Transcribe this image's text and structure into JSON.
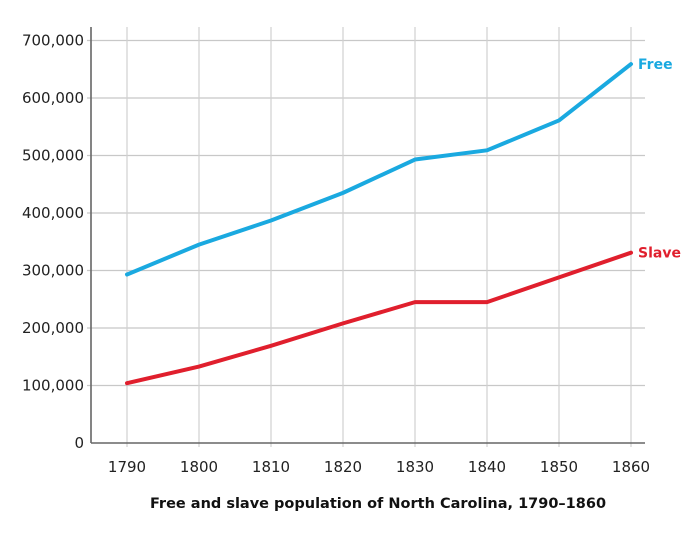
{
  "chart_data": {
    "type": "line",
    "title": "Free and slave population of North Carolina, 1790–1860",
    "xlabel": "",
    "ylabel": "",
    "x": [
      1790,
      1800,
      1810,
      1820,
      1830,
      1840,
      1850,
      1860
    ],
    "x_tick_labels": [
      "1790",
      "1800",
      "1810",
      "1820",
      "1830",
      "1840",
      "1850",
      "1860"
    ],
    "ylim": [
      0,
      700000
    ],
    "y_ticks": [
      0,
      100000,
      200000,
      300000,
      400000,
      500000,
      600000,
      700000
    ],
    "y_tick_labels": [
      "0",
      "100,000",
      "200,000",
      "300,000",
      "400,000",
      "500,000",
      "600,000",
      "700,000"
    ],
    "grid": true,
    "legend": "end-of-line labels",
    "series": [
      {
        "name": "Free",
        "color": "#1aa9e0",
        "values": [
          293000,
          345000,
          387000,
          435000,
          493000,
          509000,
          561000,
          659000
        ]
      },
      {
        "name": "Slave",
        "color": "#e01f2d",
        "values": [
          104000,
          133000,
          169000,
          208000,
          245000,
          245000,
          288000,
          331000
        ]
      }
    ]
  }
}
